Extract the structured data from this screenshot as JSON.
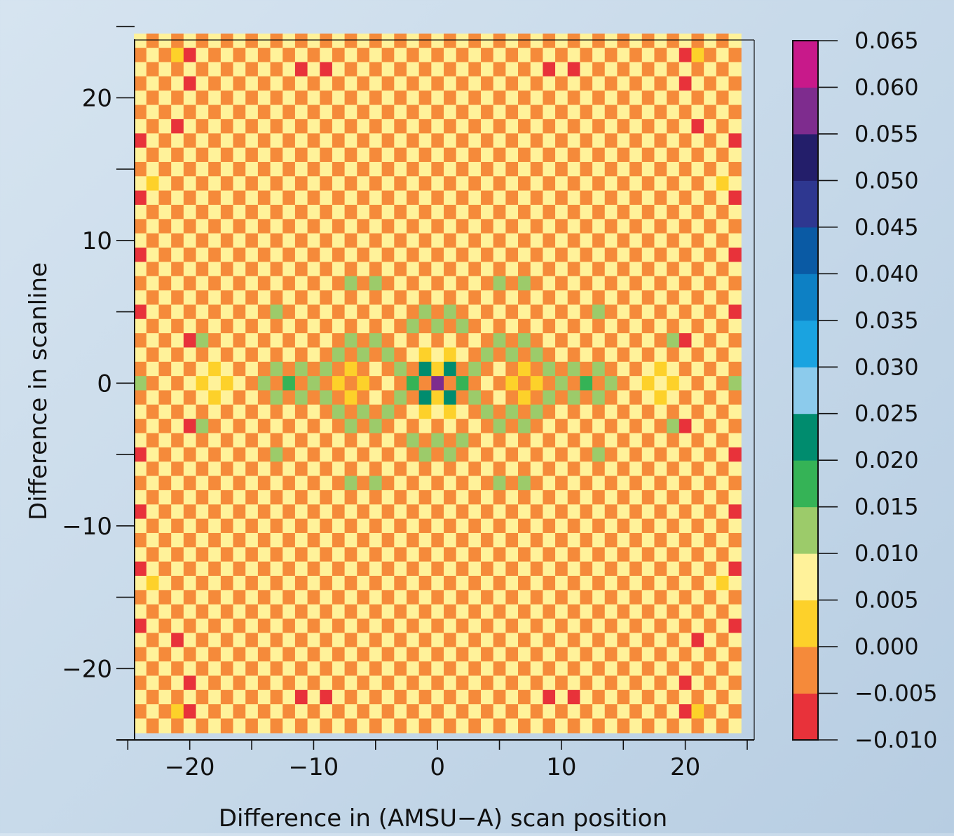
{
  "chart_data": {
    "type": "heatmap",
    "title": "",
    "xlabel": "Difference in (AMSU−A) scan position",
    "ylabel": "Difference in scanline",
    "x_range": [
      -24,
      24
    ],
    "y_range": [
      -24,
      24
    ],
    "x_ticks": [
      -20,
      -10,
      0,
      10,
      20
    ],
    "x_tick_labels": [
      "−20",
      "−10",
      "0",
      "10",
      "20"
    ],
    "y_ticks": [
      -20,
      -10,
      0,
      10,
      20
    ],
    "y_tick_labels": [
      "−20",
      "−10",
      "0",
      "10",
      "20"
    ],
    "pattern": {
      "description": "checkerboard: cells with even (x+y) = 0.005–0.010 band, odd (x+y) = −0.005–0.000 band, except listed cells",
      "even_value": 0.0075,
      "odd_value": -0.0025
    },
    "cells": [
      {
        "x": 0,
        "y": 0,
        "v": 0.0575
      },
      {
        "x": -1,
        "y": 1,
        "v": 0.0225
      },
      {
        "x": 1,
        "y": 1,
        "v": 0.0225
      },
      {
        "x": -1,
        "y": -1,
        "v": 0.0225
      },
      {
        "x": 1,
        "y": -1,
        "v": 0.0225
      },
      {
        "x": -2,
        "y": 0,
        "v": 0.0175
      },
      {
        "x": 2,
        "y": 0,
        "v": 0.0175
      },
      {
        "x": -12,
        "y": 0,
        "v": 0.0175
      },
      {
        "x": 12,
        "y": 0,
        "v": 0.0175
      },
      {
        "x": -24,
        "y": 0,
        "v": 0.0125
      },
      {
        "x": 24,
        "y": 0,
        "v": 0.0125
      },
      {
        "x": 0,
        "y": 1,
        "v": 0.0025
      },
      {
        "x": 0,
        "y": -1,
        "v": 0.0025
      },
      {
        "x": -1,
        "y": 2,
        "v": 0.0025
      },
      {
        "x": 1,
        "y": 2,
        "v": 0.0025
      },
      {
        "x": -1,
        "y": -2,
        "v": 0.0025
      },
      {
        "x": 1,
        "y": -2,
        "v": 0.0025
      },
      {
        "x": -6,
        "y": 0,
        "v": 0.0025
      },
      {
        "x": 6,
        "y": 0,
        "v": 0.0025
      },
      {
        "x": -7,
        "y": 1,
        "v": 0.0025
      },
      {
        "x": -7,
        "y": -1,
        "v": 0.0025
      },
      {
        "x": 7,
        "y": 1,
        "v": 0.0025
      },
      {
        "x": 7,
        "y": -1,
        "v": 0.0025
      },
      {
        "x": -8,
        "y": 0,
        "v": 0.0025
      },
      {
        "x": 8,
        "y": 0,
        "v": 0.0025
      },
      {
        "x": -17,
        "y": 0,
        "v": 0.0025
      },
      {
        "x": 17,
        "y": 0,
        "v": 0.0025
      },
      {
        "x": -19,
        "y": 0,
        "v": 0.0025
      },
      {
        "x": 19,
        "y": 0,
        "v": 0.0025
      },
      {
        "x": -18,
        "y": 1,
        "v": 0.0025
      },
      {
        "x": -18,
        "y": -1,
        "v": 0.0025
      },
      {
        "x": 18,
        "y": 1,
        "v": 0.0025
      },
      {
        "x": 18,
        "y": -1,
        "v": 0.0025
      },
      {
        "x": -21,
        "y": 23,
        "v": 0.0025
      },
      {
        "x": 21,
        "y": 23,
        "v": 0.0025
      },
      {
        "x": -21,
        "y": -23,
        "v": 0.0025
      },
      {
        "x": 21,
        "y": -23,
        "v": 0.0025
      },
      {
        "x": -23,
        "y": 14,
        "v": 0.0025
      },
      {
        "x": 23,
        "y": 14,
        "v": 0.0025
      },
      {
        "x": -23,
        "y": -14,
        "v": 0.0025
      },
      {
        "x": 23,
        "y": -14,
        "v": 0.0025
      },
      {
        "x": -20,
        "y": 23,
        "v": -0.0075
      },
      {
        "x": 20,
        "y": 23,
        "v": -0.0075
      },
      {
        "x": -20,
        "y": -23,
        "v": -0.0075
      },
      {
        "x": 20,
        "y": -23,
        "v": -0.0075
      },
      {
        "x": -20,
        "y": 21,
        "v": -0.0075
      },
      {
        "x": 20,
        "y": 21,
        "v": -0.0075
      },
      {
        "x": -20,
        "y": -21,
        "v": -0.0075
      },
      {
        "x": 20,
        "y": -21,
        "v": -0.0075
      },
      {
        "x": -21,
        "y": 18,
        "v": -0.0075
      },
      {
        "x": 21,
        "y": 18,
        "v": -0.0075
      },
      {
        "x": -21,
        "y": -18,
        "v": -0.0075
      },
      {
        "x": 21,
        "y": -18,
        "v": -0.0075
      },
      {
        "x": -11,
        "y": 22,
        "v": -0.0075
      },
      {
        "x": -9,
        "y": 22,
        "v": -0.0075
      },
      {
        "x": 9,
        "y": 22,
        "v": -0.0075
      },
      {
        "x": 11,
        "y": 22,
        "v": -0.0075
      },
      {
        "x": -11,
        "y": -22,
        "v": -0.0075
      },
      {
        "x": -9,
        "y": -22,
        "v": -0.0075
      },
      {
        "x": 9,
        "y": -22,
        "v": -0.0075
      },
      {
        "x": 11,
        "y": -22,
        "v": -0.0075
      },
      {
        "x": -24,
        "y": 17,
        "v": -0.0075
      },
      {
        "x": 24,
        "y": 17,
        "v": -0.0075
      },
      {
        "x": -24,
        "y": 13,
        "v": -0.0075
      },
      {
        "x": 24,
        "y": 13,
        "v": -0.0075
      },
      {
        "x": -24,
        "y": 9,
        "v": -0.0075
      },
      {
        "x": 24,
        "y": 9,
        "v": -0.0075
      },
      {
        "x": -24,
        "y": 5,
        "v": -0.0075
      },
      {
        "x": 24,
        "y": 5,
        "v": -0.0075
      },
      {
        "x": -24,
        "y": -5,
        "v": -0.0075
      },
      {
        "x": 24,
        "y": -5,
        "v": -0.0075
      },
      {
        "x": -24,
        "y": -9,
        "v": -0.0075
      },
      {
        "x": 24,
        "y": -9,
        "v": -0.0075
      },
      {
        "x": -24,
        "y": -13,
        "v": -0.0075
      },
      {
        "x": 24,
        "y": -13,
        "v": -0.0075
      },
      {
        "x": -24,
        "y": -17,
        "v": -0.0075
      },
      {
        "x": 24,
        "y": -17,
        "v": -0.0075
      },
      {
        "x": -20,
        "y": 3,
        "v": -0.0075
      },
      {
        "x": 20,
        "y": 3,
        "v": -0.0075
      },
      {
        "x": -20,
        "y": -3,
        "v": -0.0075
      },
      {
        "x": 20,
        "y": -3,
        "v": -0.0075
      },
      {
        "x": -19,
        "y": 3,
        "v": 0.0125
      },
      {
        "x": 19,
        "y": 3,
        "v": 0.0125
      },
      {
        "x": -19,
        "y": -3,
        "v": 0.0125
      },
      {
        "x": 19,
        "y": -3,
        "v": 0.0125
      },
      {
        "x": -7,
        "y": 7,
        "v": 0.0125
      },
      {
        "x": -5,
        "y": 7,
        "v": 0.0125
      },
      {
        "x": 5,
        "y": 7,
        "v": 0.0125
      },
      {
        "x": 7,
        "y": 7,
        "v": 0.0125
      },
      {
        "x": -7,
        "y": -7,
        "v": 0.0125
      },
      {
        "x": -5,
        "y": -7,
        "v": 0.0125
      },
      {
        "x": 5,
        "y": -7,
        "v": 0.0125
      },
      {
        "x": 7,
        "y": -7,
        "v": 0.0125
      },
      {
        "x": -13,
        "y": 5,
        "v": 0.0125
      },
      {
        "x": 13,
        "y": 5,
        "v": 0.0125
      },
      {
        "x": -13,
        "y": -5,
        "v": 0.0125
      },
      {
        "x": 13,
        "y": -5,
        "v": 0.0125
      },
      {
        "x": -1,
        "y": 5,
        "v": 0.0125
      },
      {
        "x": 1,
        "y": 5,
        "v": 0.0125
      },
      {
        "x": -1,
        "y": -5,
        "v": 0.0125
      },
      {
        "x": 1,
        "y": -5,
        "v": 0.0125
      },
      {
        "x": -2,
        "y": 4,
        "v": 0.0125
      },
      {
        "x": 0,
        "y": 4,
        "v": 0.0125
      },
      {
        "x": 2,
        "y": 4,
        "v": 0.0125
      },
      {
        "x": -2,
        "y": -4,
        "v": 0.0125
      },
      {
        "x": 0,
        "y": -4,
        "v": 0.0125
      },
      {
        "x": 2,
        "y": -4,
        "v": 0.0125
      },
      {
        "x": -3,
        "y": 1,
        "v": 0.0125
      },
      {
        "x": 3,
        "y": 1,
        "v": 0.0125
      },
      {
        "x": -3,
        "y": -1,
        "v": 0.0125
      },
      {
        "x": 3,
        "y": -1,
        "v": 0.0125
      },
      {
        "x": -7,
        "y": 3,
        "v": 0.0125
      },
      {
        "x": -5,
        "y": 3,
        "v": 0.0125
      },
      {
        "x": 5,
        "y": 3,
        "v": 0.0125
      },
      {
        "x": 7,
        "y": 3,
        "v": 0.0125
      },
      {
        "x": -7,
        "y": -3,
        "v": 0.0125
      },
      {
        "x": -5,
        "y": -3,
        "v": 0.0125
      },
      {
        "x": 5,
        "y": -3,
        "v": 0.0125
      },
      {
        "x": 7,
        "y": -3,
        "v": 0.0125
      },
      {
        "x": -8,
        "y": 2,
        "v": 0.0125
      },
      {
        "x": -6,
        "y": 2,
        "v": 0.0125
      },
      {
        "x": -4,
        "y": 2,
        "v": 0.0125
      },
      {
        "x": 4,
        "y": 2,
        "v": 0.0125
      },
      {
        "x": 6,
        "y": 2,
        "v": 0.0125
      },
      {
        "x": 8,
        "y": 2,
        "v": 0.0125
      },
      {
        "x": -8,
        "y": -2,
        "v": 0.0125
      },
      {
        "x": -6,
        "y": -2,
        "v": 0.0125
      },
      {
        "x": -4,
        "y": -2,
        "v": 0.0125
      },
      {
        "x": 4,
        "y": -2,
        "v": 0.0125
      },
      {
        "x": 6,
        "y": -2,
        "v": 0.0125
      },
      {
        "x": 8,
        "y": -2,
        "v": 0.0125
      },
      {
        "x": -9,
        "y": 1,
        "v": 0.0125
      },
      {
        "x": 9,
        "y": 1,
        "v": 0.0125
      },
      {
        "x": -9,
        "y": -1,
        "v": 0.0125
      },
      {
        "x": 9,
        "y": -1,
        "v": 0.0125
      },
      {
        "x": -13,
        "y": 1,
        "v": 0.0125
      },
      {
        "x": -11,
        "y": 1,
        "v": 0.0125
      },
      {
        "x": 11,
        "y": 1,
        "v": 0.0125
      },
      {
        "x": 13,
        "y": 1,
        "v": 0.0125
      },
      {
        "x": -13,
        "y": -1,
        "v": 0.0125
      },
      {
        "x": -11,
        "y": -1,
        "v": 0.0125
      },
      {
        "x": 11,
        "y": -1,
        "v": 0.0125
      },
      {
        "x": 13,
        "y": -1,
        "v": 0.0125
      },
      {
        "x": -14,
        "y": 0,
        "v": 0.0125
      },
      {
        "x": -10,
        "y": 0,
        "v": 0.0125
      },
      {
        "x": 10,
        "y": 0,
        "v": 0.0125
      },
      {
        "x": 14,
        "y": 0,
        "v": 0.0125
      }
    ],
    "colorbar": {
      "ticks": [
        -0.01,
        -0.005,
        0.0,
        0.005,
        0.01,
        0.015,
        0.02,
        0.025,
        0.03,
        0.035,
        0.04,
        0.045,
        0.05,
        0.055,
        0.06,
        0.065
      ],
      "tick_labels": [
        "−0.010",
        "−0.005",
        "0.000",
        "0.005",
        "0.010",
        "0.015",
        "0.020",
        "0.025",
        "0.030",
        "0.035",
        "0.040",
        "0.045",
        "0.050",
        "0.055",
        "0.060",
        "0.065"
      ],
      "colors": [
        "#e8323a",
        "#f58a3a",
        "#fdd12a",
        "#fff29a",
        "#9ccb6a",
        "#35b356",
        "#008c6e",
        "#8ccbec",
        "#1aa3e0",
        "#0d80c4",
        "#0a5aa4",
        "#2e3790",
        "#231e6a",
        "#7e2c8e",
        "#c8198a"
      ]
    },
    "grid": false,
    "legend": "none"
  }
}
